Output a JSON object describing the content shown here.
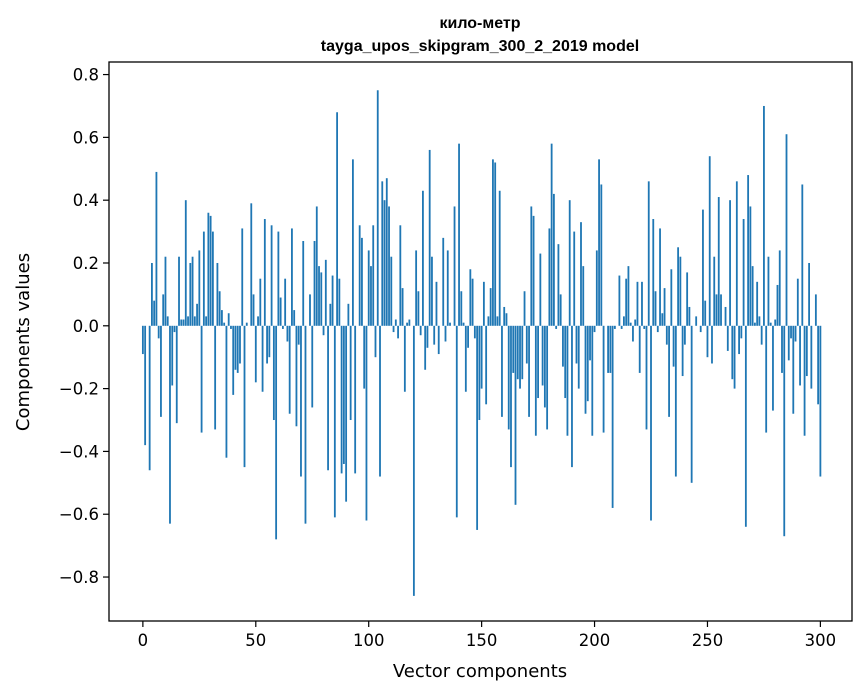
{
  "chart_data": {
    "type": "bar",
    "title": [
      "кило-метр",
      "tayga_upos_skipgram_300_2_2019 model"
    ],
    "xlabel": "Vector components",
    "ylabel": "Components values",
    "xlim": [
      -15,
      314
    ],
    "ylim": [
      -0.94,
      0.84
    ],
    "x_ticks": [
      0,
      50,
      100,
      150,
      200,
      250,
      300
    ],
    "x_tick_labels": [
      "0",
      "50",
      "100",
      "150",
      "200",
      "250",
      "300"
    ],
    "y_ticks": [
      -0.8,
      -0.6,
      -0.4,
      -0.2,
      0.0,
      0.2,
      0.4,
      0.6,
      0.8
    ],
    "y_tick_labels": [
      "−0.8",
      "−0.6",
      "−0.4",
      "−0.2",
      "0.0",
      "0.2",
      "0.4",
      "0.6",
      "0.8"
    ],
    "bar_color": "#1f77b4",
    "values": [
      -0.09,
      -0.38,
      0.0,
      -0.46,
      0.2,
      0.08,
      0.49,
      -0.04,
      -0.29,
      0.1,
      0.22,
      0.03,
      -0.63,
      -0.19,
      -0.02,
      -0.31,
      0.22,
      0.02,
      0.02,
      0.4,
      0.03,
      0.2,
      0.22,
      0.03,
      0.07,
      0.24,
      -0.34,
      0.3,
      0.03,
      0.36,
      0.35,
      0.3,
      -0.33,
      0.2,
      0.11,
      0.05,
      0.01,
      -0.42,
      0.04,
      -0.01,
      -0.22,
      -0.14,
      -0.15,
      -0.12,
      0.31,
      -0.45,
      0.01,
      0.0,
      0.39,
      0.1,
      -0.18,
      0.03,
      0.15,
      -0.21,
      0.34,
      -0.12,
      -0.1,
      0.32,
      -0.3,
      -0.68,
      0.3,
      0.09,
      -0.01,
      0.15,
      -0.05,
      -0.28,
      0.31,
      0.05,
      -0.32,
      -0.06,
      -0.48,
      0.27,
      -0.63,
      0.0,
      0.1,
      -0.26,
      0.27,
      0.38,
      0.19,
      0.17,
      -0.03,
      0.21,
      -0.46,
      0.07,
      0.16,
      -0.61,
      0.68,
      0.15,
      -0.47,
      -0.44,
      -0.56,
      0.07,
      -0.3,
      0.53,
      -0.47,
      0.0,
      0.32,
      0.28,
      -0.2,
      -0.62,
      0.24,
      0.19,
      0.32,
      -0.1,
      0.75,
      -0.48,
      0.46,
      0.4,
      0.47,
      0.38,
      0.22,
      -0.02,
      0.02,
      -0.04,
      0.32,
      0.12,
      -0.21,
      0.01,
      0.02,
      0.0,
      -0.86,
      0.24,
      0.11,
      -0.03,
      0.43,
      -0.14,
      -0.07,
      0.56,
      0.22,
      -0.06,
      0.14,
      -0.09,
      0.0,
      0.28,
      -0.05,
      0.24,
      0.01,
      0.0,
      0.38,
      -0.61,
      0.58,
      0.11,
      0.01,
      -0.21,
      -0.07,
      0.18,
      0.15,
      -0.04,
      -0.65,
      -0.3,
      -0.2,
      0.14,
      -0.25,
      0.03,
      0.12,
      0.53,
      0.52,
      0.03,
      0.43,
      -0.29,
      0.06,
      0.04,
      -0.33,
      -0.45,
      -0.15,
      -0.57,
      -0.17,
      -0.2,
      -0.17,
      0.11,
      -0.12,
      -0.29,
      0.38,
      0.35,
      -0.35,
      -0.23,
      0.23,
      -0.19,
      -0.26,
      -0.33,
      0.31,
      0.58,
      0.42,
      -0.01,
      0.26,
      0.1,
      -0.13,
      -0.23,
      -0.35,
      0.4,
      -0.45,
      0.3,
      -0.12,
      -0.2,
      0.33,
      0.19,
      -0.28,
      -0.24,
      -0.11,
      -0.35,
      -0.02,
      0.24,
      0.53,
      0.45,
      -0.34,
      0.0,
      -0.15,
      -0.15,
      -0.58,
      -0.01,
      0.0,
      0.16,
      -0.01,
      0.03,
      0.15,
      0.19,
      0.01,
      -0.05,
      0.02,
      0.14,
      -0.15,
      0.14,
      -0.01,
      -0.33,
      0.46,
      -0.62,
      0.34,
      0.11,
      -0.02,
      0.31,
      0.04,
      0.12,
      -0.06,
      -0.29,
      0.18,
      -0.13,
      -0.48,
      0.25,
      0.22,
      -0.16,
      -0.06,
      0.17,
      0.06,
      -0.5,
      0.0,
      0.03,
      0.0,
      -0.02,
      0.37,
      0.08,
      -0.1,
      0.54,
      -0.12,
      0.22,
      0.1,
      0.41,
      0.1,
      0.0,
      0.06,
      -0.08,
      0.4,
      -0.17,
      -0.2,
      0.46,
      -0.09,
      -0.04,
      0.34,
      -0.64,
      0.48,
      0.38,
      0.19,
      0.01,
      0.14,
      0.03,
      -0.06,
      0.7,
      -0.34,
      0.22,
      0.01,
      -0.27,
      0.02,
      0.13,
      0.24,
      -0.15,
      -0.67,
      0.61,
      -0.11,
      -0.04,
      -0.28,
      -0.05,
      0.15,
      -0.19,
      0.45,
      -0.35,
      -0.16,
      0.2,
      -0.2,
      0.0,
      0.1,
      -0.25,
      -0.48
    ]
  }
}
